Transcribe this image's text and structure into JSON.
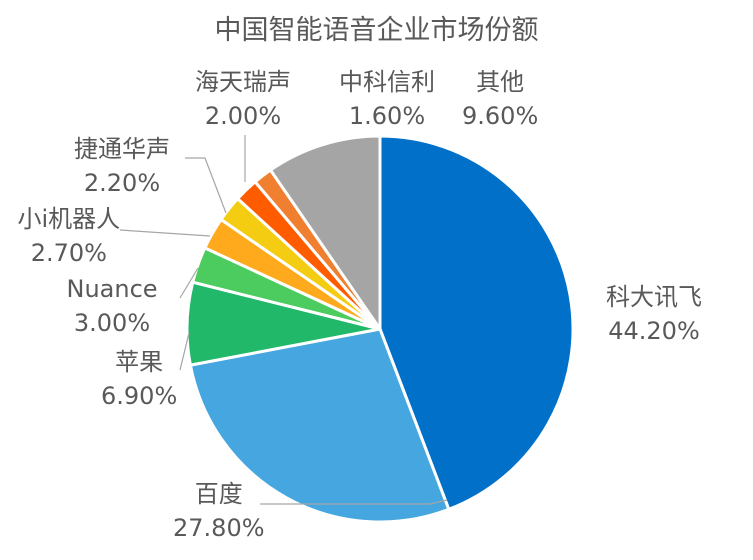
{
  "chart_data": {
    "type": "pie",
    "title": "中国智能语音企业市场份额",
    "slices": [
      {
        "label": "科大讯飞",
        "value": 44.2,
        "display": "44.20%",
        "color": "#0070C8"
      },
      {
        "label": "百度",
        "value": 27.8,
        "display": "27.80%",
        "color": "#45A6E0"
      },
      {
        "label": "苹果",
        "value": 6.9,
        "display": "6.90%",
        "color": "#22B86A"
      },
      {
        "label": "Nuance",
        "value": 3.0,
        "display": "3.00%",
        "color": "#4CCB5E"
      },
      {
        "label": "小i机器人",
        "value": 2.7,
        "display": "2.70%",
        "color": "#FFA91C"
      },
      {
        "label": "捷通华声",
        "value": 2.2,
        "display": "2.20%",
        "color": "#F4CC12"
      },
      {
        "label": "海天瑞声",
        "value": 2.0,
        "display": "2.00%",
        "color": "#FF5C00"
      },
      {
        "label": "中科信利",
        "value": 1.6,
        "display": "1.60%",
        "color": "#F07F30"
      },
      {
        "label": "其他",
        "value": 9.6,
        "display": "9.60%",
        "color": "#A5A5A5"
      }
    ]
  }
}
